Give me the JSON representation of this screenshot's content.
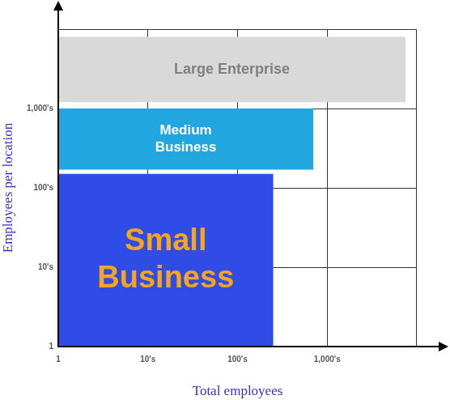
{
  "chart_data": {
    "type": "rectangle",
    "x_label": "Total employees",
    "y_label": "Employees per location",
    "log": true,
    "grid": true,
    "xlim": [
      1,
      10000
    ],
    "ylim": [
      1,
      10000
    ],
    "xticks": [
      1,
      {
        "value": 10,
        "label": "10's"
      },
      {
        "value": 100,
        "label": "100's"
      },
      {
        "value": 1000,
        "label": "1,000's"
      }
    ],
    "yticks": [
      1,
      {
        "value": 10,
        "label": "10's"
      },
      {
        "value": 100,
        "label": "100's"
      },
      {
        "value": 1000,
        "label": "1,000's"
      }
    ],
    "series": [
      {
        "name": "Large Enterprise",
        "color": "#d9d9d9",
        "x": [
          1,
          7500
        ],
        "y": [
          1200,
          8000
        ]
      },
      {
        "name": "Medium Business",
        "color": "#22a6df",
        "x": [
          1,
          700
        ],
        "y": [
          170,
          1000
        ]
      },
      {
        "name": "Small Business",
        "color": "#2f4ce6",
        "x": [
          1,
          250
        ],
        "y": [
          1,
          150
        ]
      }
    ]
  }
}
